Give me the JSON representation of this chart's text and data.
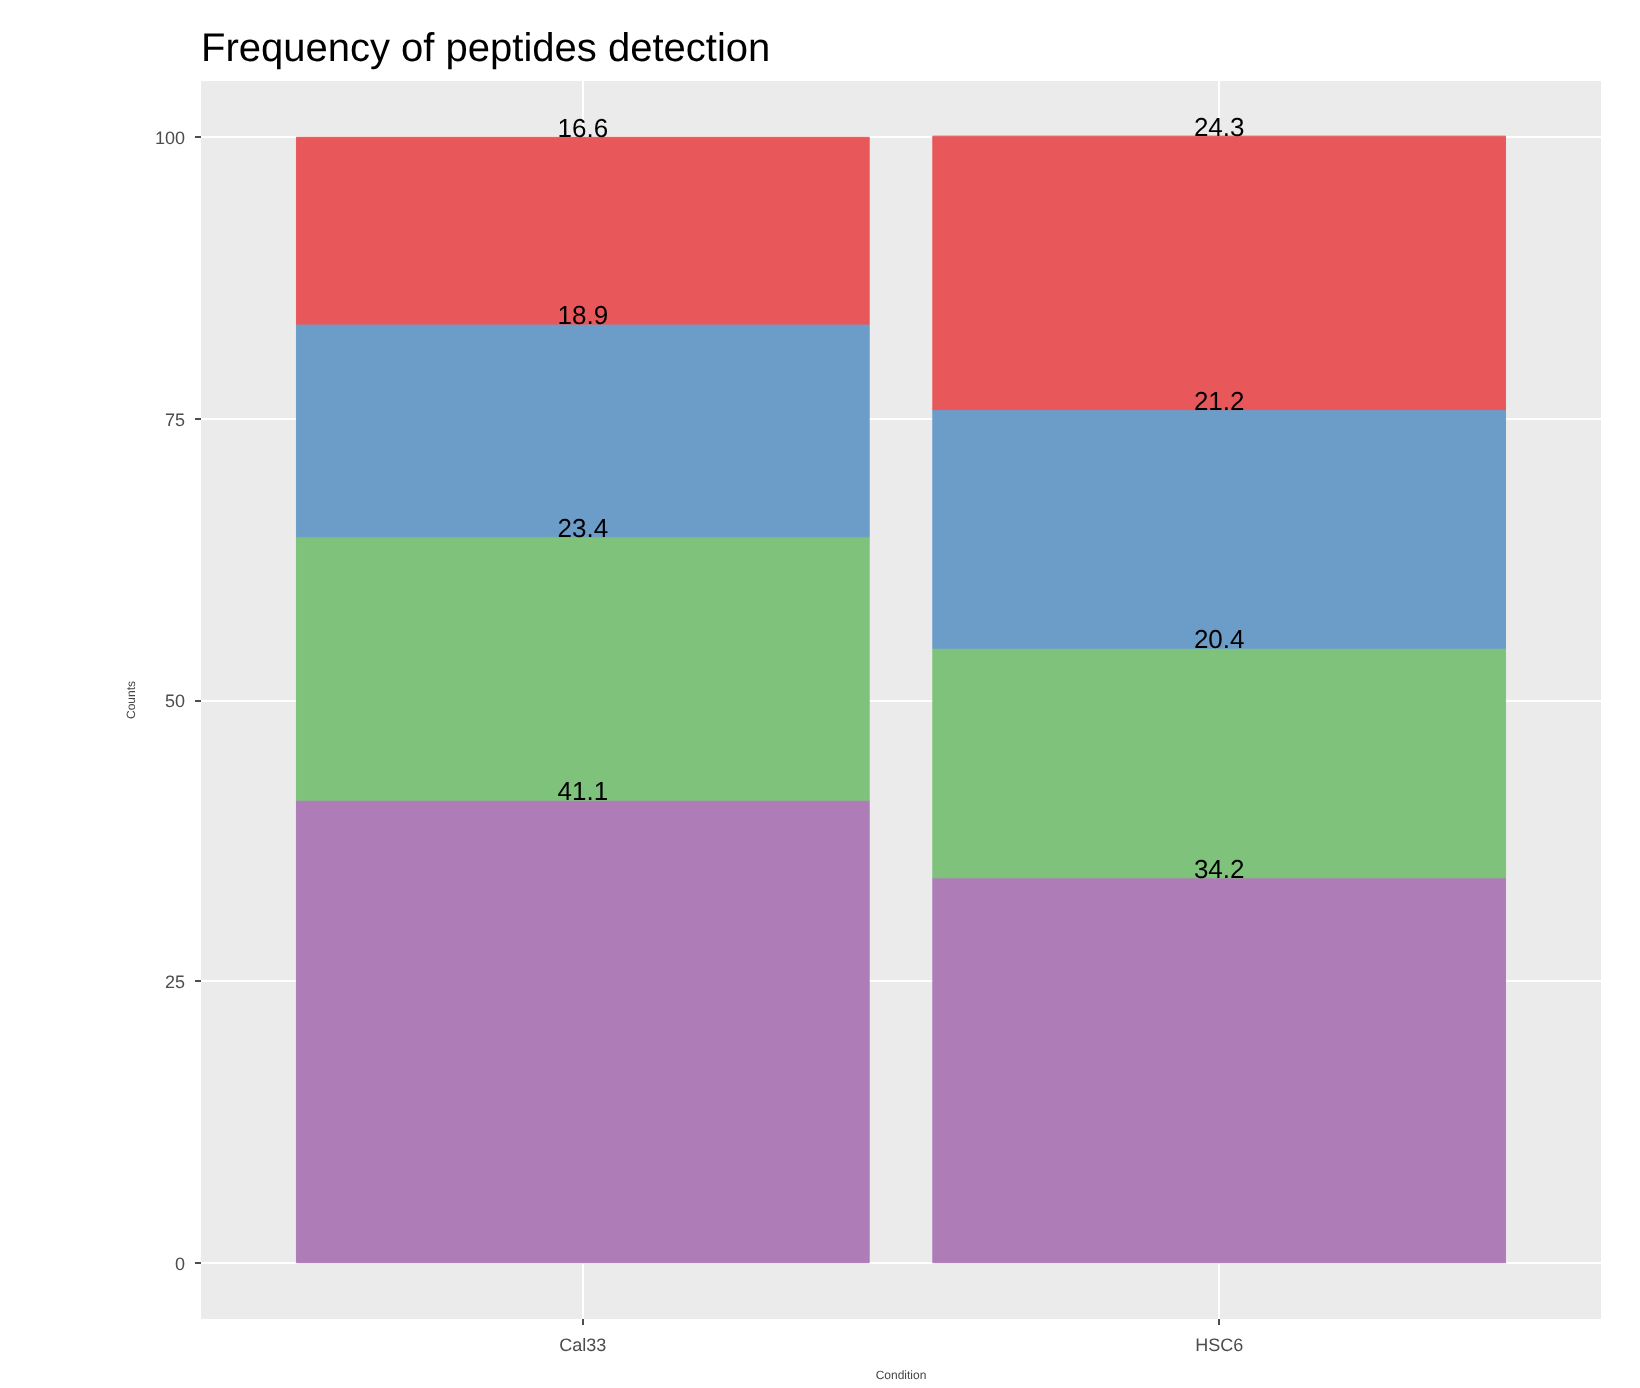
{
  "chart_data": {
    "type": "bar",
    "title": "Frequency of peptides detection",
    "xlabel": "Condition",
    "ylabel": "Counts",
    "categories": [
      "Cal33",
      "HSC6"
    ],
    "stacked": true,
    "data_labels": true,
    "grid": true,
    "ylim": [
      -5,
      105
    ],
    "yticks": [
      0,
      25,
      50,
      75,
      100
    ],
    "series": [
      {
        "color": "#ae7db8",
        "values": [
          41.1,
          34.2
        ]
      },
      {
        "color": "#7fc27b",
        "values": [
          23.4,
          20.4
        ]
      },
      {
        "color": "#6b9dc8",
        "values": [
          18.9,
          21.2
        ]
      },
      {
        "color": "#e8585b",
        "values": [
          16.6,
          24.3
        ]
      }
    ]
  }
}
